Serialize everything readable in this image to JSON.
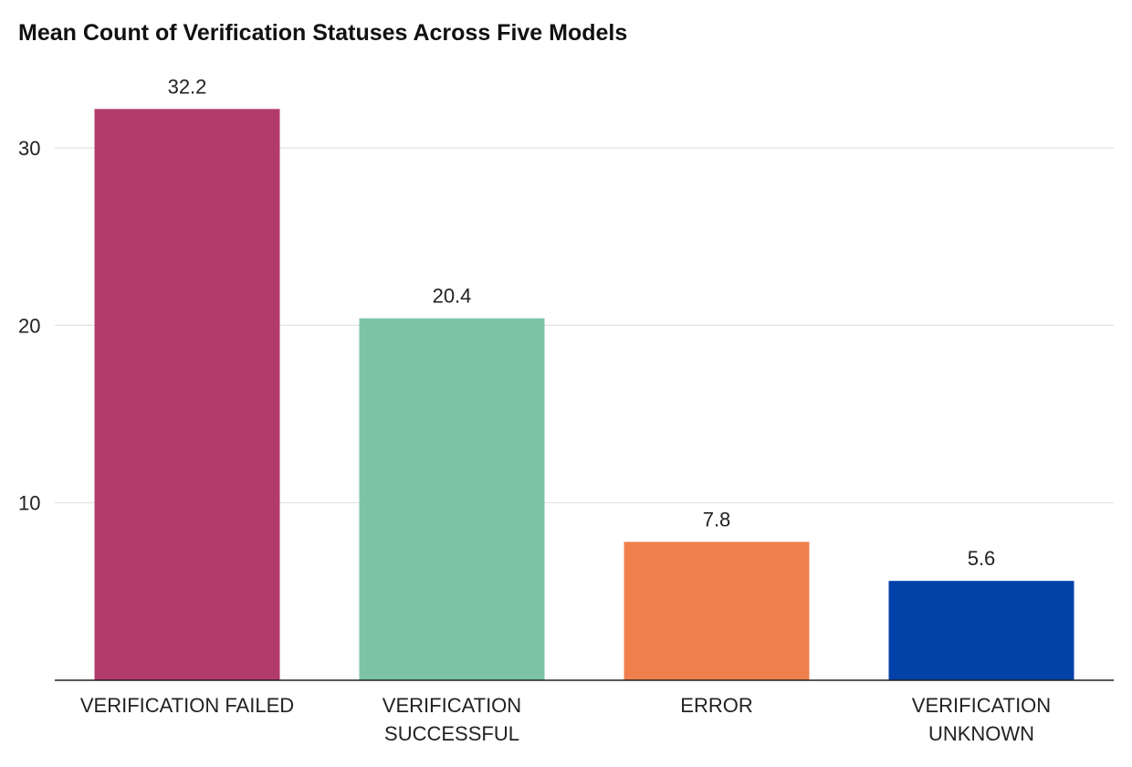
{
  "chart_data": {
    "type": "bar",
    "title": "Mean Count of Verification Statuses Across Five Models",
    "xlabel": "",
    "ylabel": "",
    "categories": [
      [
        "VERIFICATION FAILED"
      ],
      [
        "VERIFICATION",
        "SUCCESSFUL"
      ],
      [
        "ERROR"
      ],
      [
        "VERIFICATION",
        "UNKNOWN"
      ]
    ],
    "values": [
      32.2,
      20.4,
      7.8,
      5.6
    ],
    "data_labels": [
      "32.2",
      "20.4",
      "7.8",
      "5.6"
    ],
    "colors": [
      "#b33b6b",
      "#7cc4a6",
      "#f07f4e",
      "#0241a8"
    ],
    "ylim": [
      0,
      34
    ],
    "yticks": [
      10,
      20,
      30
    ],
    "grid": true,
    "legend": "none"
  }
}
